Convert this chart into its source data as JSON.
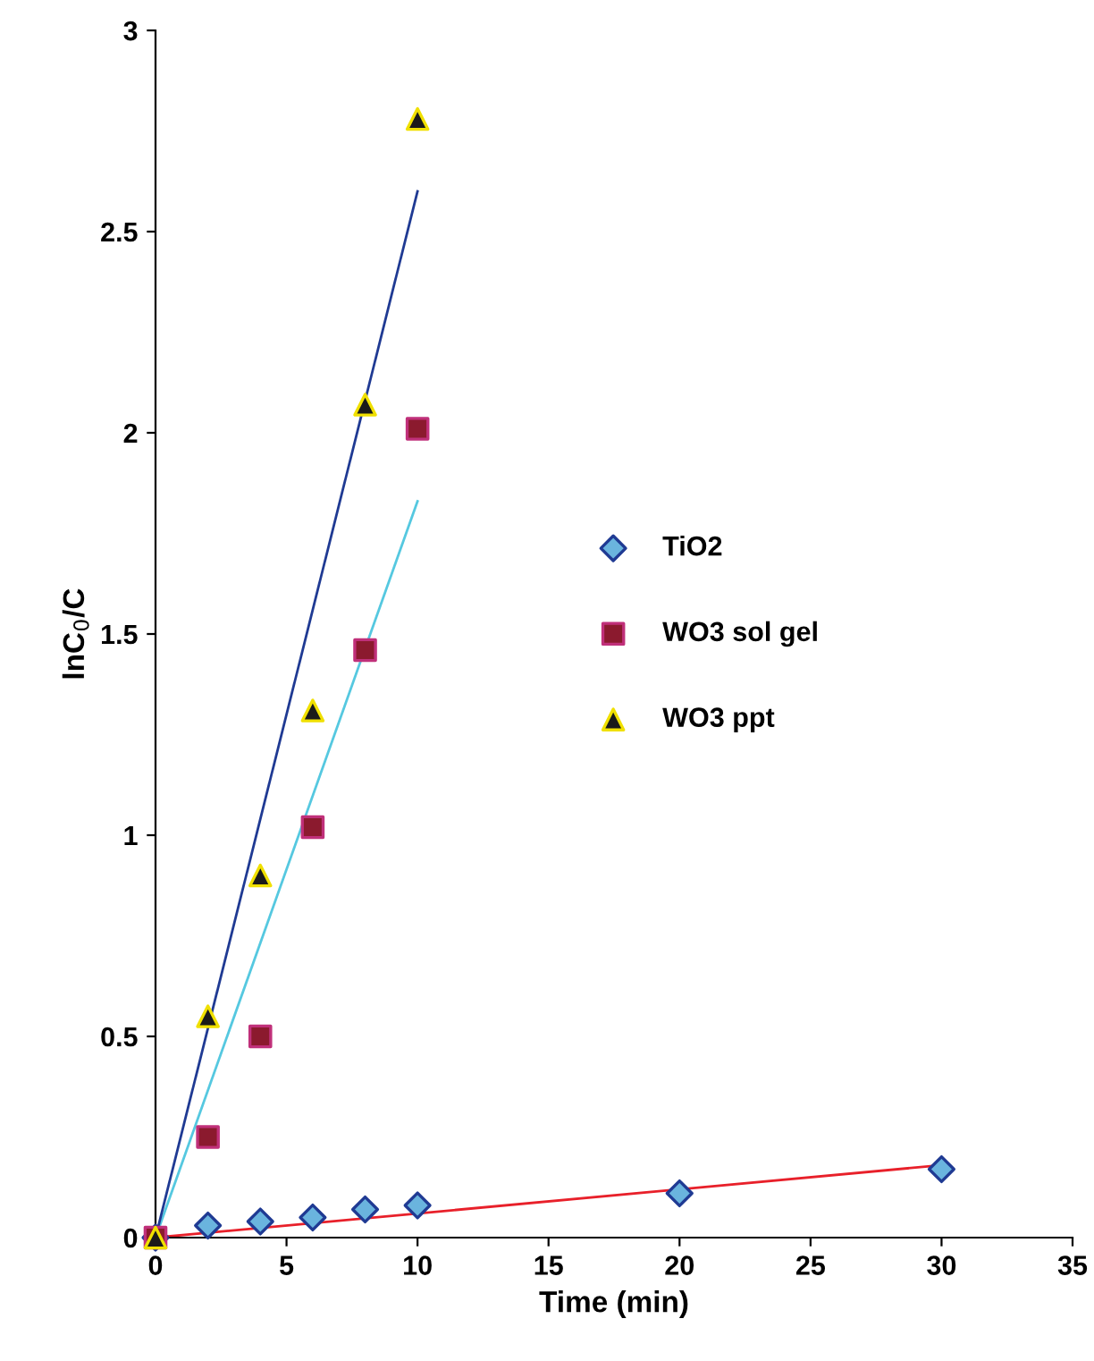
{
  "chart_data": {
    "type": "scatter",
    "xlabel": "Time (min)",
    "ylabel": "lnC$_{0}$/C",
    "xlim": [
      0,
      35
    ],
    "xticks": [
      0,
      5,
      10,
      15,
      20,
      25,
      30,
      35
    ],
    "ylim": [
      0,
      3
    ],
    "yticks": [
      0,
      0.5,
      1,
      1.5,
      2,
      2.5,
      3
    ],
    "grid": false,
    "legend": "right",
    "series": [
      {
        "name": "TiO2",
        "marker": "diamond",
        "color": "#6ab4de",
        "x": [
          0,
          2,
          4,
          6,
          8,
          10,
          20,
          30
        ],
        "values": [
          0,
          0.03,
          0.04,
          0.05,
          0.07,
          0.08,
          0.11,
          0.17
        ]
      },
      {
        "name": "WO3 sol gel",
        "marker": "square",
        "color": "#8b1a2e",
        "x": [
          0,
          2,
          4,
          6,
          8,
          10
        ],
        "values": [
          0,
          0.25,
          0.5,
          1.02,
          1.46,
          2.01
        ]
      },
      {
        "name": "WO3 ppt",
        "marker": "triangle",
        "color": "#1a1a1a",
        "x": [
          0,
          2,
          4,
          6,
          8,
          10
        ],
        "values": [
          0,
          0.55,
          0.9,
          1.31,
          2.07,
          2.78
        ]
      },
      {
        "type": "line",
        "color": "#e8202a",
        "x": [
          0,
          30
        ],
        "values": [
          0,
          0.18
        ]
      },
      {
        "type": "line",
        "color": "#55c8e0",
        "x": [
          0,
          10
        ],
        "values": [
          0,
          1.83
        ]
      },
      {
        "type": "line",
        "color": "#1f3a93",
        "x": [
          0,
          10
        ],
        "values": [
          0,
          2.6
        ]
      }
    ]
  }
}
